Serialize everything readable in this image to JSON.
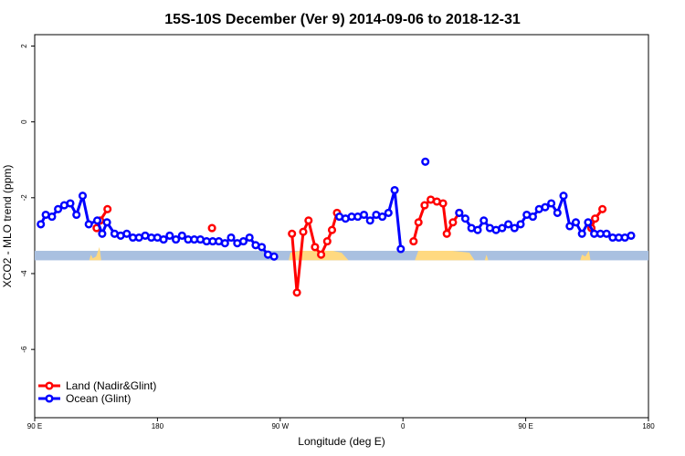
{
  "chart_data": {
    "type": "line",
    "title": "15S-10S December (Ver 9)   2014-09-06 to 2018-12-31",
    "xlabel": "Longitude (deg E)",
    "ylabel": "XCO2 - MLO trend (ppm)",
    "xlim": [
      90,
      450
    ],
    "ylim": [
      -7.8,
      2.3
    ],
    "x_ticks": [
      {
        "value": 90,
        "label": "90 E"
      },
      {
        "value": 162,
        "label": "180"
      },
      {
        "value": 234,
        "label": "90 W"
      },
      {
        "value": 306,
        "label": "0"
      },
      {
        "value": 378,
        "label": "90 E"
      },
      {
        "value": 450,
        "label": "180"
      }
    ],
    "y_ticks": [
      {
        "value": 2,
        "label": "2"
      },
      {
        "value": 0,
        "label": "0"
      },
      {
        "value": -2,
        "label": "-2"
      },
      {
        "value": -4,
        "label": "-4"
      },
      {
        "value": -6,
        "label": "-6"
      }
    ],
    "legend_position": "bottom-left",
    "band": {
      "y_top": -3.4,
      "y_bottom": -3.65,
      "color": "#a9c0e0"
    },
    "land_fill": {
      "color": "#ffd980",
      "segments": [
        [
          [
            122,
            -3.65
          ],
          [
            123,
            -3.5
          ],
          [
            124,
            -3.6
          ],
          [
            126,
            -3.55
          ],
          [
            128,
            -3.3
          ],
          [
            129,
            -3.65
          ]
        ],
        [
          [
            239,
            -3.65
          ],
          [
            240,
            -3.45
          ],
          [
            245,
            -3.4
          ],
          [
            250,
            -3.4
          ],
          [
            260,
            -3.4
          ],
          [
            265,
            -3.4
          ],
          [
            270,
            -3.45
          ],
          [
            274,
            -3.65
          ]
        ],
        [
          [
            313,
            -3.65
          ],
          [
            315,
            -3.4
          ],
          [
            325,
            -3.4
          ],
          [
            335,
            -3.4
          ],
          [
            345,
            -3.45
          ],
          [
            348,
            -3.65
          ]
        ],
        [
          [
            354,
            -3.65
          ],
          [
            355,
            -3.5
          ],
          [
            356,
            -3.65
          ]
        ],
        [
          [
            410,
            -3.65
          ],
          [
            411,
            -3.5
          ],
          [
            413,
            -3.55
          ],
          [
            415,
            -3.4
          ],
          [
            416,
            -3.65
          ]
        ]
      ]
    },
    "series": [
      {
        "name": "Land (Nadir&Glint)",
        "color": "#ff0000",
        "segments": [
          [
            [
              126.3,
              -2.8
            ],
            [
              128.4,
              -2.6
            ],
            [
              132.7,
              -2.3
            ]
          ],
          [
            [
              194,
              -2.8
            ]
          ],
          [
            [
              240.9,
              -2.95
            ],
            [
              243.8,
              -4.5
            ],
            [
              247.5,
              -2.9
            ],
            [
              250.6,
              -2.6
            ],
            [
              254.4,
              -3.3
            ],
            [
              258,
              -3.5
            ],
            [
              261.6,
              -3.15
            ],
            [
              264.4,
              -2.85
            ],
            [
              267.3,
              -2.4
            ]
          ],
          [
            [
              312.2,
              -3.15
            ],
            [
              315.1,
              -2.65
            ],
            [
              318.7,
              -2.2
            ],
            [
              322.3,
              -2.05
            ],
            [
              325.9,
              -2.1
            ],
            [
              329.5,
              -2.15
            ],
            [
              331.7,
              -2.95
            ],
            [
              335.3,
              -2.65
            ],
            [
              339,
              -2.4
            ]
          ],
          [
            [
              416.5,
              -2.8
            ],
            [
              418.7,
              -2.55
            ],
            [
              423,
              -2.3
            ]
          ]
        ]
      },
      {
        "name": "Ocean (Glint)",
        "color": "#0000ff",
        "segments": [
          [
            [
              93.6,
              -2.7
            ],
            [
              96.5,
              -2.45
            ],
            [
              100.1,
              -2.5
            ],
            [
              103.7,
              -2.3
            ],
            [
              107.3,
              -2.2
            ],
            [
              110.9,
              -2.15
            ],
            [
              114.5,
              -2.45
            ],
            [
              118.1,
              -1.95
            ],
            [
              121.7,
              -2.7
            ],
            [
              126.7,
              -2.6
            ],
            [
              129.6,
              -2.95
            ],
            [
              132.4,
              -2.65
            ],
            [
              136.8,
              -2.95
            ],
            [
              140.4,
              -3.0
            ],
            [
              144,
              -2.95
            ],
            [
              147.6,
              -3.05
            ],
            [
              151.2,
              -3.05
            ],
            [
              154.8,
              -3.0
            ],
            [
              158.4,
              -3.05
            ],
            [
              162,
              -3.05
            ],
            [
              165.6,
              -3.1
            ],
            [
              169.2,
              -3.0
            ],
            [
              172.8,
              -3.1
            ],
            [
              176.4,
              -3.0
            ],
            [
              180,
              -3.1
            ],
            [
              183.6,
              -3.1
            ],
            [
              187.2,
              -3.1
            ],
            [
              190.8,
              -3.15
            ],
            [
              194.4,
              -3.15
            ],
            [
              198,
              -3.15
            ],
            [
              201.6,
              -3.2
            ],
            [
              205.2,
              -3.05
            ],
            [
              208.8,
              -3.2
            ],
            [
              212.4,
              -3.15
            ],
            [
              216,
              -3.05
            ],
            [
              219.6,
              -3.25
            ],
            [
              223.2,
              -3.3
            ],
            [
              226.8,
              -3.5
            ],
            [
              230.4,
              -3.55
            ]
          ],
          [
            [
              268.7,
              -2.5
            ],
            [
              272.3,
              -2.55
            ],
            [
              275.9,
              -2.5
            ],
            [
              279.5,
              -2.5
            ],
            [
              283.1,
              -2.45
            ],
            [
              286.7,
              -2.6
            ],
            [
              290.3,
              -2.45
            ],
            [
              293.9,
              -2.5
            ],
            [
              297.5,
              -2.4
            ],
            [
              301.1,
              -1.8
            ],
            [
              304.7,
              -3.35
            ]
          ],
          [
            [
              319.1,
              -1.05
            ]
          ],
          [
            [
              339,
              -2.4
            ],
            [
              342.6,
              -2.55
            ],
            [
              346.2,
              -2.8
            ],
            [
              349.8,
              -2.85
            ],
            [
              353.4,
              -2.6
            ],
            [
              357,
              -2.8
            ],
            [
              360.6,
              -2.85
            ],
            [
              364.2,
              -2.8
            ],
            [
              367.8,
              -2.7
            ],
            [
              371.4,
              -2.8
            ],
            [
              375,
              -2.7
            ],
            [
              378.6,
              -2.45
            ],
            [
              382.2,
              -2.5
            ],
            [
              385.8,
              -2.3
            ],
            [
              389.4,
              -2.25
            ],
            [
              393,
              -2.15
            ],
            [
              396.6,
              -2.4
            ],
            [
              400.2,
              -1.95
            ],
            [
              403.8,
              -2.75
            ],
            [
              407.4,
              -2.65
            ],
            [
              411,
              -2.95
            ],
            [
              414.6,
              -2.65
            ],
            [
              418.2,
              -2.95
            ],
            [
              421.8,
              -2.95
            ],
            [
              425.4,
              -2.95
            ],
            [
              429,
              -3.05
            ],
            [
              432.6,
              -3.05
            ],
            [
              436.2,
              -3.05
            ],
            [
              439.8,
              -3.0
            ]
          ]
        ]
      }
    ]
  }
}
